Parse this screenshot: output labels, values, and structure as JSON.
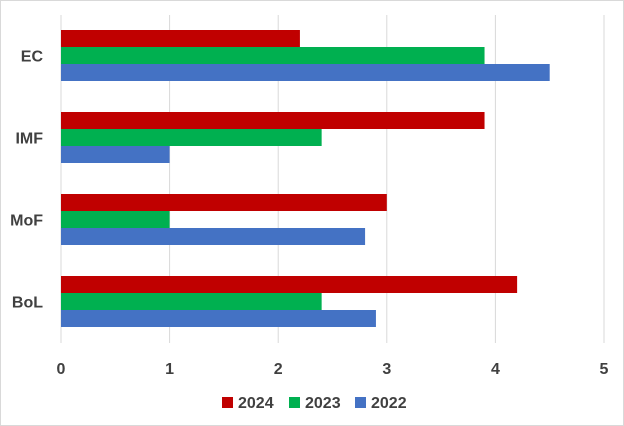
{
  "chart_data": {
    "type": "bar",
    "orientation": "horizontal",
    "categories": [
      "EC",
      "IMF",
      "MoF",
      "BoL"
    ],
    "series": [
      {
        "name": "2024",
        "color": "#c00000",
        "values": [
          2.2,
          3.9,
          3.0,
          4.2
        ]
      },
      {
        "name": "2023",
        "color": "#00b050",
        "values": [
          3.9,
          2.4,
          1.0,
          2.4
        ]
      },
      {
        "name": "2022",
        "color": "#4472c4",
        "values": [
          4.5,
          1.0,
          2.8,
          2.9
        ]
      }
    ],
    "xlim": [
      0,
      5
    ],
    "xticks": [
      "0",
      "1",
      "2",
      "3",
      "4",
      "5"
    ],
    "grid": true,
    "legend_position": "bottom",
    "title": "",
    "xlabel": "",
    "ylabel": ""
  }
}
